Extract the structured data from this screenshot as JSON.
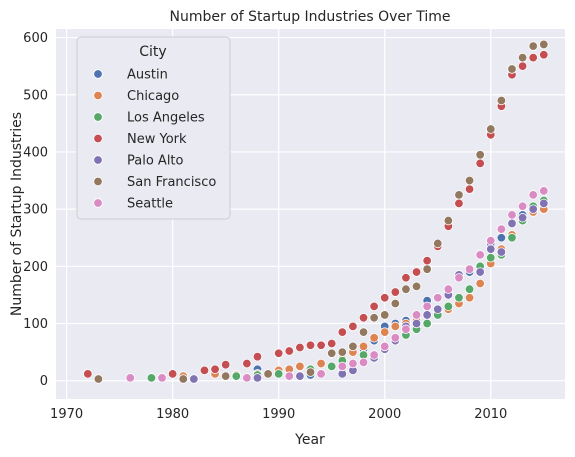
{
  "chart_data": {
    "type": "scatter",
    "title": "Number of Startup Industries Over Time",
    "xlabel": "Year",
    "ylabel": "Number of Startup Industries",
    "xlim": [
      1969,
      2017
    ],
    "ylim": [
      -32,
      615
    ],
    "xticks": [
      1970,
      1980,
      1990,
      2000,
      2010
    ],
    "yticks": [
      0,
      100,
      200,
      300,
      400,
      500,
      600
    ],
    "grid": true,
    "legend": {
      "title": "City",
      "placement": "top-left"
    },
    "series": [
      {
        "name": "Austin",
        "color": "#4c72b0",
        "points": [
          [
            1988,
            20
          ],
          [
            1993,
            10
          ],
          [
            1996,
            15
          ],
          [
            1998,
            55
          ],
          [
            1999,
            70
          ],
          [
            2000,
            95
          ],
          [
            2001,
            100
          ],
          [
            2002,
            105
          ],
          [
            2003,
            110
          ],
          [
            2004,
            140
          ],
          [
            2005,
            145
          ],
          [
            2006,
            160
          ],
          [
            2007,
            180
          ],
          [
            2008,
            190
          ],
          [
            2009,
            220
          ],
          [
            2010,
            240
          ],
          [
            2011,
            250
          ],
          [
            2012,
            275
          ],
          [
            2013,
            290
          ],
          [
            2014,
            300
          ],
          [
            2015,
            305
          ]
        ]
      },
      {
        "name": "Chicago",
        "color": "#dd8452",
        "points": [
          [
            1981,
            8
          ],
          [
            1984,
            12
          ],
          [
            1986,
            10
          ],
          [
            1988,
            12
          ],
          [
            1990,
            18
          ],
          [
            1991,
            20
          ],
          [
            1992,
            25
          ],
          [
            1994,
            30
          ],
          [
            1996,
            38
          ],
          [
            1997,
            50
          ],
          [
            1998,
            60
          ],
          [
            1999,
            75
          ],
          [
            2000,
            85
          ],
          [
            2001,
            95
          ],
          [
            2002,
            100
          ],
          [
            2003,
            105
          ],
          [
            2004,
            115
          ],
          [
            2005,
            120
          ],
          [
            2006,
            125
          ],
          [
            2007,
            135
          ],
          [
            2008,
            145
          ],
          [
            2009,
            170
          ],
          [
            2010,
            205
          ],
          [
            2011,
            230
          ],
          [
            2012,
            255
          ],
          [
            2013,
            280
          ],
          [
            2014,
            295
          ],
          [
            2015,
            300
          ]
        ]
      },
      {
        "name": "Los Angeles",
        "color": "#55a868",
        "points": [
          [
            1978,
            5
          ],
          [
            1986,
            8
          ],
          [
            1988,
            10
          ],
          [
            1990,
            12
          ],
          [
            1993,
            20
          ],
          [
            1995,
            25
          ],
          [
            1996,
            35
          ],
          [
            1998,
            45
          ],
          [
            2000,
            60
          ],
          [
            2001,
            70
          ],
          [
            2002,
            80
          ],
          [
            2003,
            90
          ],
          [
            2004,
            100
          ],
          [
            2005,
            115
          ],
          [
            2006,
            130
          ],
          [
            2007,
            145
          ],
          [
            2008,
            160
          ],
          [
            2009,
            200
          ],
          [
            2010,
            215
          ],
          [
            2011,
            220
          ],
          [
            2012,
            250
          ],
          [
            2013,
            280
          ],
          [
            2014,
            305
          ],
          [
            2015,
            315
          ]
        ]
      },
      {
        "name": "New York",
        "color": "#c44e52",
        "points": [
          [
            1972,
            12
          ],
          [
            1980,
            12
          ],
          [
            1983,
            18
          ],
          [
            1984,
            20
          ],
          [
            1985,
            28
          ],
          [
            1987,
            30
          ],
          [
            1988,
            42
          ],
          [
            1990,
            48
          ],
          [
            1991,
            52
          ],
          [
            1992,
            58
          ],
          [
            1993,
            62
          ],
          [
            1994,
            62
          ],
          [
            1995,
            65
          ],
          [
            1996,
            85
          ],
          [
            1997,
            95
          ],
          [
            1998,
            110
          ],
          [
            1999,
            130
          ],
          [
            2000,
            145
          ],
          [
            2001,
            155
          ],
          [
            2002,
            180
          ],
          [
            2003,
            190
          ],
          [
            2004,
            210
          ],
          [
            2005,
            235
          ],
          [
            2006,
            270
          ],
          [
            2007,
            310
          ],
          [
            2008,
            335
          ],
          [
            2009,
            380
          ],
          [
            2010,
            430
          ],
          [
            2011,
            480
          ],
          [
            2012,
            535
          ],
          [
            2013,
            550
          ],
          [
            2014,
            565
          ],
          [
            2015,
            570
          ]
        ]
      },
      {
        "name": "Palo Alto",
        "color": "#8172b3",
        "points": [
          [
            1982,
            3
          ],
          [
            1988,
            5
          ],
          [
            1992,
            8
          ],
          [
            1996,
            12
          ],
          [
            1997,
            18
          ],
          [
            1999,
            40
          ],
          [
            2000,
            55
          ],
          [
            2001,
            70
          ],
          [
            2002,
            95
          ],
          [
            2003,
            100
          ],
          [
            2004,
            115
          ],
          [
            2005,
            125
          ],
          [
            2006,
            150
          ],
          [
            2007,
            185
          ],
          [
            2008,
            195
          ],
          [
            2009,
            190
          ],
          [
            2010,
            230
          ],
          [
            2011,
            225
          ],
          [
            2012,
            275
          ],
          [
            2013,
            285
          ],
          [
            2014,
            300
          ],
          [
            2015,
            310
          ]
        ]
      },
      {
        "name": "San Francisco",
        "color": "#937860",
        "points": [
          [
            1973,
            3
          ],
          [
            1981,
            3
          ],
          [
            1985,
            8
          ],
          [
            1989,
            12
          ],
          [
            1993,
            15
          ],
          [
            1995,
            48
          ],
          [
            1996,
            50
          ],
          [
            1997,
            60
          ],
          [
            1998,
            85
          ],
          [
            1999,
            110
          ],
          [
            2000,
            115
          ],
          [
            2001,
            135
          ],
          [
            2002,
            160
          ],
          [
            2003,
            165
          ],
          [
            2004,
            195
          ],
          [
            2005,
            240
          ],
          [
            2006,
            280
          ],
          [
            2007,
            325
          ],
          [
            2008,
            350
          ],
          [
            2009,
            395
          ],
          [
            2010,
            440
          ],
          [
            2011,
            490
          ],
          [
            2012,
            545
          ],
          [
            2013,
            565
          ],
          [
            2014,
            585
          ],
          [
            2015,
            588
          ]
        ]
      },
      {
        "name": "Seattle",
        "color": "#da8bc3",
        "points": [
          [
            1976,
            5
          ],
          [
            1979,
            5
          ],
          [
            1987,
            5
          ],
          [
            1991,
            8
          ],
          [
            1994,
            12
          ],
          [
            1996,
            25
          ],
          [
            1997,
            30
          ],
          [
            1998,
            32
          ],
          [
            1999,
            45
          ],
          [
            2000,
            60
          ],
          [
            2001,
            75
          ],
          [
            2002,
            90
          ],
          [
            2003,
            115
          ],
          [
            2004,
            130
          ],
          [
            2005,
            145
          ],
          [
            2006,
            160
          ],
          [
            2007,
            180
          ],
          [
            2008,
            195
          ],
          [
            2009,
            220
          ],
          [
            2010,
            245
          ],
          [
            2011,
            265
          ],
          [
            2012,
            290
          ],
          [
            2013,
            305
          ],
          [
            2014,
            325
          ],
          [
            2015,
            332
          ]
        ]
      }
    ]
  }
}
